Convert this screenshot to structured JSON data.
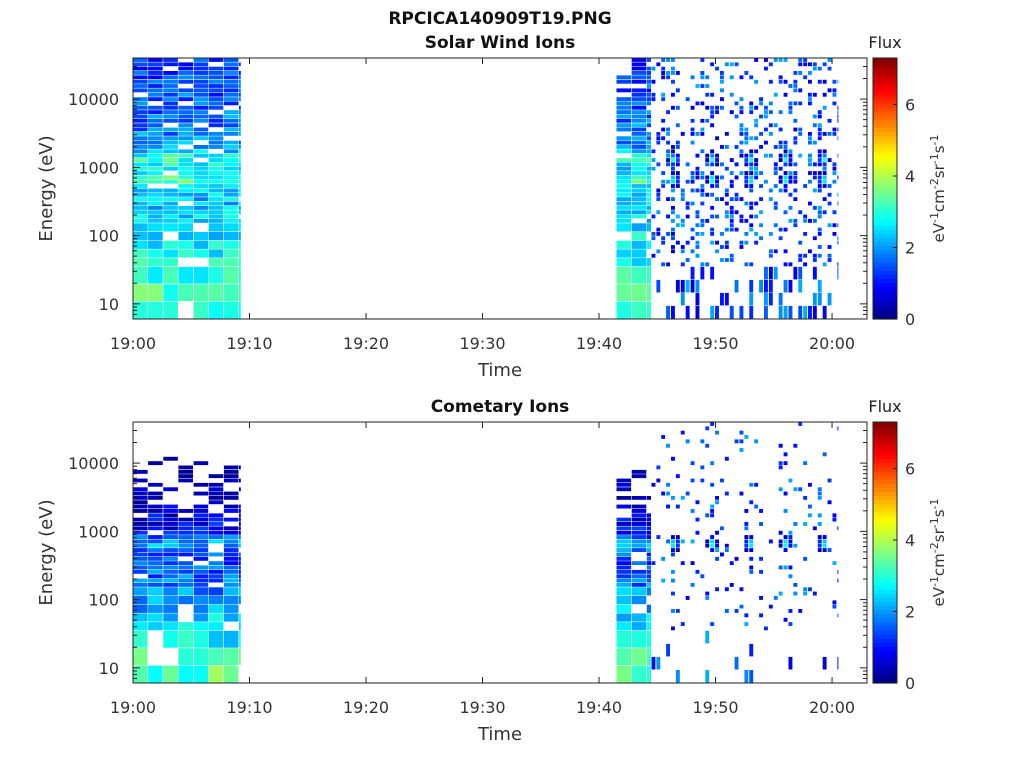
{
  "figure_title": "RPCICA140909T19.PNG",
  "chart_data": [
    {
      "type": "heatmap",
      "title": "Solar Wind Ions",
      "xlabel": "Time",
      "ylabel": "Energy (eV)",
      "x_ticks": [
        "19:00",
        "19:10",
        "19:20",
        "19:30",
        "19:40",
        "19:50",
        "20:00"
      ],
      "x_tick_minutes": [
        0,
        10,
        20,
        30,
        40,
        50,
        60
      ],
      "xlim_minutes": [
        0,
        63
      ],
      "y_scale": "log",
      "y_ticks": [
        "10",
        "100",
        "1000",
        "10000"
      ],
      "y_tick_values": [
        10,
        100,
        1000,
        10000
      ],
      "ylim": [
        6,
        40000
      ],
      "colorbar": {
        "label": "Flux",
        "units_label": "eV-1cm-2sr-1s-1",
        "range": [
          0,
          7.3
        ],
        "ticks": [
          "0",
          "2",
          "4",
          "6"
        ],
        "tick_values": [
          0,
          2,
          4,
          6
        ],
        "colormap": "jet"
      },
      "data_segments": [
        {
          "start_minute": 0,
          "end_minute": 9.3,
          "description_level": "dense"
        },
        {
          "start_minute": 41.5,
          "end_minute": 44.5,
          "description_level": "dense"
        },
        {
          "start_minute": 44.5,
          "end_minute": 60.5,
          "description_level": "sparse"
        }
      ],
      "peak_energies_ev": [
        650,
        1300
      ],
      "peak_times_minutes": [
        46.5,
        49.8,
        53,
        56.1,
        59.3
      ]
    },
    {
      "type": "heatmap",
      "title": "Cometary Ions",
      "xlabel": "Time",
      "ylabel": "Energy (eV)",
      "x_ticks": [
        "19:00",
        "19:10",
        "19:20",
        "19:30",
        "19:40",
        "19:50",
        "20:00"
      ],
      "x_tick_minutes": [
        0,
        10,
        20,
        30,
        40,
        50,
        60
      ],
      "xlim_minutes": [
        0,
        63
      ],
      "y_scale": "log",
      "y_ticks": [
        "10",
        "100",
        "1000",
        "10000"
      ],
      "y_tick_values": [
        10,
        100,
        1000,
        10000
      ],
      "ylim": [
        6,
        40000
      ],
      "colorbar": {
        "label": "Flux",
        "units_label": "eV-1cm-2sr-1s-1",
        "range": [
          0,
          7.3
        ],
        "ticks": [
          "0",
          "2",
          "4",
          "6"
        ],
        "tick_values": [
          0,
          2,
          4,
          6
        ],
        "colormap": "jet"
      },
      "data_segments": [
        {
          "start_minute": 0,
          "end_minute": 9.3,
          "description_level": "dense"
        },
        {
          "start_minute": 41.5,
          "end_minute": 44.5,
          "description_level": "dense"
        },
        {
          "start_minute": 44.5,
          "end_minute": 60.5,
          "description_level": "sparse"
        }
      ],
      "peak_energies_ev": [
        650
      ],
      "peak_times_minutes": [
        46.5,
        49.8,
        53,
        56.1,
        59.3
      ]
    }
  ]
}
